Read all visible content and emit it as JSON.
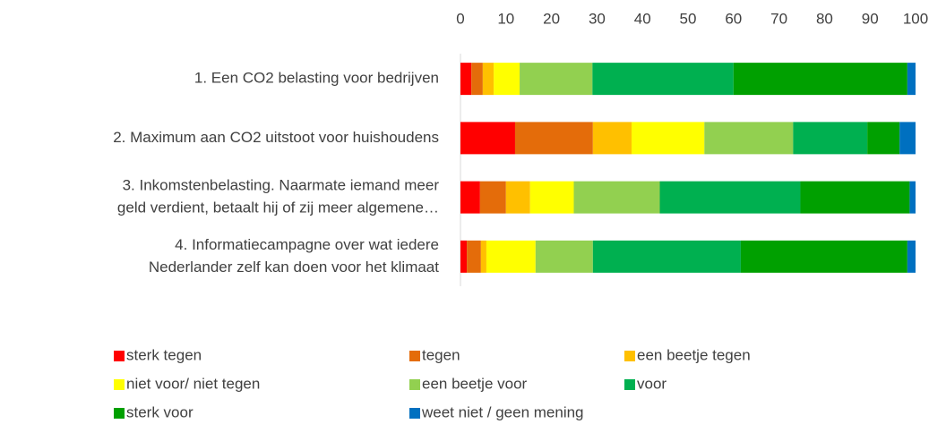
{
  "chart_data": {
    "type": "stacked-bar-horizontal",
    "categories": [
      [
        "1. Een CO2 belasting voor bedrijven"
      ],
      [
        "2. Maximum aan CO2 uitstoot voor huishoudens"
      ],
      [
        "3. Inkomstenbelasting. Naarmate iemand meer",
        "geld verdient, betaalt hij of zij meer algemene…"
      ],
      [
        "4. Informatiecampagne over wat iedere",
        "Nederlander zelf kan doen voor het klimaat"
      ]
    ],
    "series": [
      {
        "name": "sterk tegen",
        "color": "#ff0000",
        "values": [
          2.4,
          12,
          4.3,
          1.4
        ]
      },
      {
        "name": "tegen",
        "color": "#e46c0a",
        "values": [
          2.5,
          17.1,
          5.7,
          3.1
        ]
      },
      {
        "name": "een beetje tegen",
        "color": "#ffc000",
        "values": [
          2.4,
          8.5,
          5.3,
          1.2
        ]
      },
      {
        "name": "niet voor/ niet tegen",
        "color": "#ffff00",
        "values": [
          5.7,
          16,
          9.6,
          10.8
        ]
      },
      {
        "name": "een beetje voor",
        "color": "#92d050",
        "values": [
          16,
          19.5,
          18.9,
          12.6
        ]
      },
      {
        "name": "voor",
        "color": "#00b050",
        "values": [
          31,
          16.3,
          30.9,
          32.5
        ]
      },
      {
        "name": "sterk voor",
        "color": "#00a000",
        "values": [
          38.2,
          7.1,
          24,
          36.6
        ]
      },
      {
        "name": "weet niet / geen mening",
        "color": "#0070c0",
        "values": [
          1.8,
          3.5,
          1.3,
          1.8
        ]
      }
    ],
    "xlim": [
      0,
      100
    ],
    "xticks": [
      0,
      10,
      20,
      30,
      40,
      50,
      60,
      70,
      80,
      90,
      100
    ],
    "legend": "bottom"
  }
}
